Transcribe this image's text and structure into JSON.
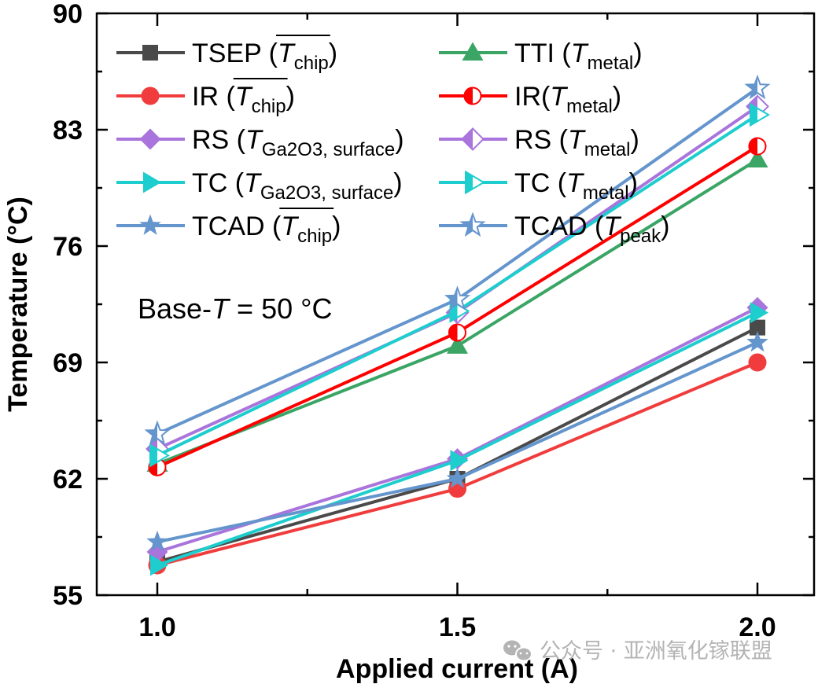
{
  "chart_data": {
    "type": "line",
    "title": "",
    "xlabel": "Applied current (A)",
    "ylabel": "Temperature (°C)",
    "x": [
      1.0,
      1.5,
      2.0
    ],
    "xlim": [
      0.8,
      2.2
    ],
    "ylim": [
      55,
      90
    ],
    "xticks": [
      1.0,
      1.5,
      2.0
    ],
    "xtick_labels": [
      "1.0",
      "1.5",
      "2.0"
    ],
    "xminor_ticks": [
      1.25,
      1.75
    ],
    "yticks": [
      55,
      62,
      69,
      76,
      83,
      90
    ],
    "ytick_labels": [
      "55",
      "62",
      "69",
      "76",
      "83",
      "90"
    ],
    "yminor_ticks": [
      58.5,
      65.5,
      72.5,
      79.5,
      86.5
    ],
    "grid": false,
    "legend_position": "top-left",
    "annotation": {
      "prefix": "Base-",
      "italic": "T",
      "suffix": " = 50 °C"
    },
    "series": [
      {
        "name": "TSEP (T̄chip)",
        "label_main": "TSEP (",
        "label_var": "T",
        "label_sub": "chip",
        "overline": true,
        "label_close": ")",
        "color": "#4a4a4a",
        "marker": "square",
        "fill": "full",
        "values": [
          57.0,
          62.0,
          71.1
        ]
      },
      {
        "name": "TTI (Tmetal)",
        "label_main": "TTI (",
        "label_var": "T",
        "label_sub": "metal",
        "overline": false,
        "label_close": ")",
        "color": "#3aa565",
        "marker": "triangle-up",
        "fill": "full",
        "values": [
          62.9,
          70.0,
          81.2
        ]
      },
      {
        "name": "IR (T̄chip)",
        "label_main": "IR (",
        "label_var": "T",
        "label_sub": "chip",
        "overline": true,
        "label_close": ")",
        "color": "#f03c3c",
        "marker": "circle",
        "fill": "full",
        "values": [
          56.8,
          61.4,
          69.0
        ]
      },
      {
        "name": "IR(Tmetal)",
        "label_main": "IR(",
        "label_var": "T",
        "label_sub": "metal",
        "overline": false,
        "label_close": ")",
        "color": "#ff0000",
        "marker": "circle",
        "fill": "left-half",
        "values": [
          62.7,
          70.8,
          82.0
        ]
      },
      {
        "name": "RS (TGa2O3, surface)",
        "label_main": "RS (",
        "label_var": "T",
        "label_sub": "Ga2O3, surface",
        "overline": false,
        "label_close": ")",
        "color": "#a974dc",
        "marker": "diamond",
        "fill": "full",
        "values": [
          57.6,
          63.2,
          72.3
        ]
      },
      {
        "name": "RS (Tmetal)",
        "label_main": "RS (",
        "label_var": "T",
        "label_sub": "metal",
        "overline": false,
        "label_close": ")",
        "color": "#a974dc",
        "marker": "diamond",
        "fill": "left-half",
        "values": [
          63.8,
          72.0,
          84.4
        ]
      },
      {
        "name": "TC (TGa2O3, surface)",
        "label_main": "TC (",
        "label_var": "T",
        "label_sub": "Ga2O3, surface",
        "overline": false,
        "label_close": ")",
        "color": "#1ecdcd",
        "marker": "triangle-right",
        "fill": "full",
        "values": [
          56.8,
          63.1,
          72.0
        ]
      },
      {
        "name": "TC (Tmetal)",
        "label_main": "TC (",
        "label_var": "T",
        "label_sub": "metal",
        "overline": false,
        "label_close": ")",
        "color": "#1ecdcd",
        "marker": "triangle-right",
        "fill": "left-half",
        "values": [
          63.4,
          72.1,
          83.9
        ]
      },
      {
        "name": "TCAD (T̄chip)",
        "label_main": "TCAD (",
        "label_var": "T",
        "label_sub": "chip",
        "overline": true,
        "label_close": ")",
        "color": "#6495cd",
        "marker": "star",
        "fill": "full",
        "values": [
          58.2,
          62.0,
          70.2
        ]
      },
      {
        "name": "TCAD (Tpeak)",
        "label_main": "TCAD (",
        "label_var": "T",
        "label_sub": "peak",
        "overline": false,
        "label_close": ")",
        "color": "#6495cd",
        "marker": "star",
        "fill": "left-half",
        "values": [
          64.7,
          72.8,
          85.5
        ]
      }
    ]
  },
  "watermark": {
    "icon": "wechat-icon",
    "text": "公众号 · 亚洲氧化镓联盟"
  }
}
